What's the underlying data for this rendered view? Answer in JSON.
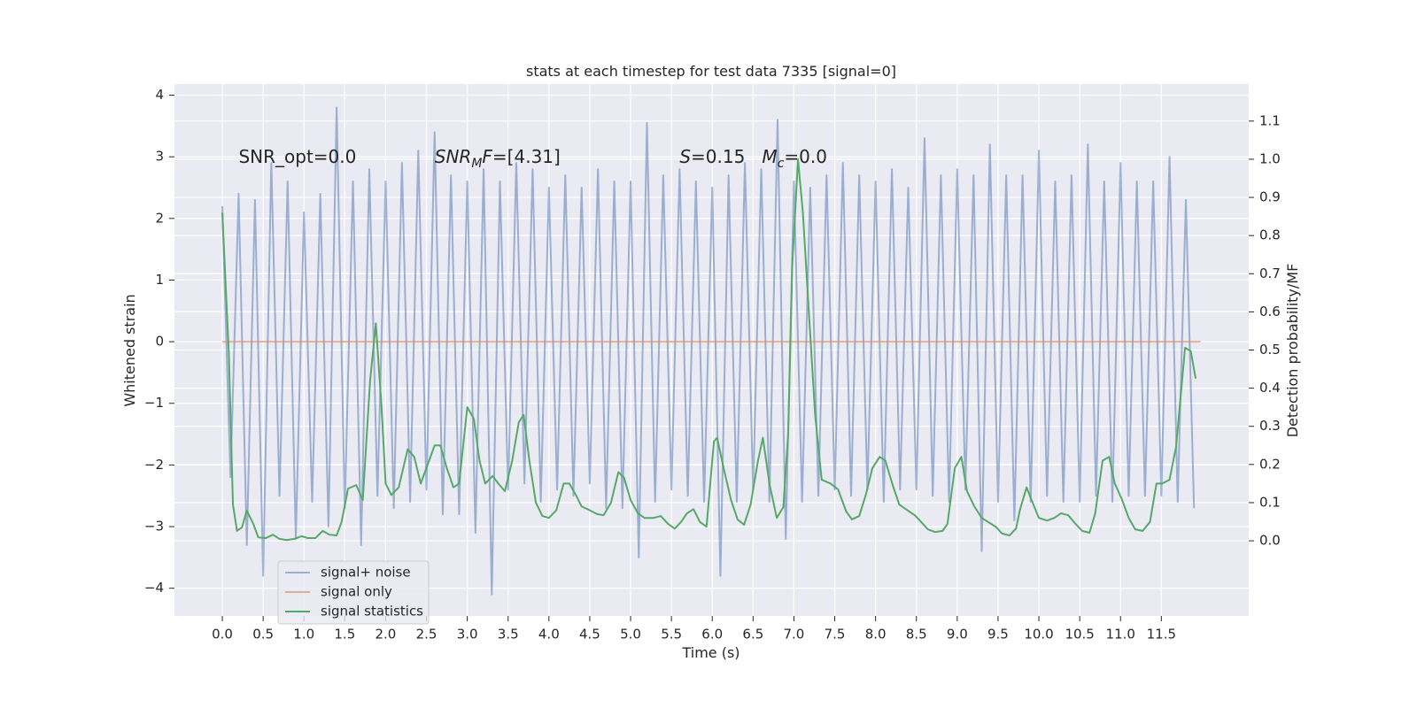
{
  "chart_data": {
    "type": "line",
    "title": "stats at each timestep for test data 7335 [signal=0]",
    "xlabel": "Time (s)",
    "ylabel": "Whitened strain",
    "y2label": "Detection probability/MF",
    "xlim": [
      -0.586,
      12.57
    ],
    "ylim": [
      -4.45,
      4.18
    ],
    "y2lim": [
      -0.197,
      1.197
    ],
    "grid": true,
    "legend": "lower left",
    "xticks": [
      {
        "value": 0,
        "label": "0.0"
      },
      {
        "value": 0.5,
        "label": "0.5"
      },
      {
        "value": 1,
        "label": "1.0"
      },
      {
        "value": 1.5,
        "label": "1.5"
      },
      {
        "value": 2,
        "label": "2.0"
      },
      {
        "value": 2.5,
        "label": "2.5"
      },
      {
        "value": 3,
        "label": "3.0"
      },
      {
        "value": 3.5,
        "label": "3.5"
      },
      {
        "value": 4,
        "label": "4.0"
      },
      {
        "value": 4.5,
        "label": "4.5"
      },
      {
        "value": 5,
        "label": "5.0"
      },
      {
        "value": 5.5,
        "label": "5.5"
      },
      {
        "value": 6,
        "label": "6.0"
      },
      {
        "value": 6.5,
        "label": "6.5"
      },
      {
        "value": 7,
        "label": "7.0"
      },
      {
        "value": 7.5,
        "label": "7.5"
      },
      {
        "value": 8,
        "label": "8.0"
      },
      {
        "value": 8.5,
        "label": "8.5"
      },
      {
        "value": 9,
        "label": "9.0"
      },
      {
        "value": 9.5,
        "label": "9.5"
      },
      {
        "value": 10,
        "label": "10.0"
      },
      {
        "value": 10.5,
        "label": "10.5"
      },
      {
        "value": 11,
        "label": "11.0"
      },
      {
        "value": 11.5,
        "label": "11.5"
      }
    ],
    "yticks": [
      {
        "value": -4,
        "label": "−4"
      },
      {
        "value": -3,
        "label": "−3"
      },
      {
        "value": -2,
        "label": "−2"
      },
      {
        "value": -1,
        "label": "−1"
      },
      0,
      1,
      2,
      3,
      4
    ],
    "y2ticks": [
      {
        "value": 0,
        "label": "0.0"
      },
      {
        "value": 0.1,
        "label": "0.1"
      },
      {
        "value": 0.2,
        "label": "0.2"
      },
      {
        "value": 0.3,
        "label": "0.3"
      },
      {
        "value": 0.4,
        "label": "0.4"
      },
      {
        "value": 0.5,
        "label": "0.5"
      },
      {
        "value": 0.6,
        "label": "0.6"
      },
      {
        "value": 0.7,
        "label": "0.7"
      },
      {
        "value": 0.8,
        "label": "0.8"
      },
      {
        "value": 0.9,
        "label": "0.9"
      },
      {
        "value": 1,
        "label": "1.0"
      },
      {
        "value": 1.1,
        "label": "1.1"
      }
    ],
    "annotations": [
      {
        "parts": [
          {
            "text": "SNR_opt=0.0"
          }
        ]
      },
      {
        "parts": [
          {
            "text": "SNR",
            "style": "italic"
          },
          {
            "text": "M",
            "style": "italic-sub"
          },
          {
            "text": "F",
            "style": "italic"
          },
          {
            "text": "=[4.31]"
          }
        ]
      },
      {
        "parts": [
          {
            "text": "S",
            "style": "italic"
          },
          {
            "text": "=0.15   "
          },
          {
            "text": "M",
            "style": "italic"
          },
          {
            "text": "c",
            "style": "italic-sub"
          },
          {
            "text": "=0.0"
          }
        ]
      }
    ],
    "series": [
      {
        "name": "signal+ noise",
        "color": "#4c72b0",
        "opacity": 0.5,
        "x": [
          0,
          0.1,
          0.2,
          0.3,
          0.4,
          0.5,
          0.6,
          0.7,
          0.8,
          0.9,
          1,
          1.1,
          1.2,
          1.3,
          1.4,
          1.5,
          1.6,
          1.7,
          1.8,
          1.9,
          2,
          2.1,
          2.2,
          2.3,
          2.4,
          2.5,
          2.6,
          2.7,
          2.8,
          2.9,
          3,
          3.1,
          3.2,
          3.3,
          3.4,
          3.5,
          3.6,
          3.7,
          3.8,
          3.9,
          4,
          4.1,
          4.2,
          4.3,
          4.4,
          4.5,
          4.6,
          4.7,
          4.8,
          4.9,
          5,
          5.1,
          5.2,
          5.3,
          5.4,
          5.5,
          5.6,
          5.7,
          5.8,
          5.9,
          6,
          6.1,
          6.2,
          6.3,
          6.4,
          6.5,
          6.6,
          6.7,
          6.8,
          6.9,
          7,
          7.1,
          7.2,
          7.3,
          7.4,
          7.5,
          7.6,
          7.7,
          7.8,
          7.9,
          8,
          8.1,
          8.2,
          8.3,
          8.4,
          8.5,
          8.6,
          8.7,
          8.8,
          8.9,
          9,
          9.1,
          9.2,
          9.3,
          9.4,
          9.5,
          9.6,
          9.7,
          9.8,
          9.9,
          10,
          10.1,
          10.2,
          10.3,
          10.4,
          10.5,
          10.6,
          10.7,
          10.8,
          10.9,
          11,
          11.1,
          11.2,
          11.3,
          11.4,
          11.5,
          11.6,
          11.7,
          11.8,
          11.9
        ],
        "values": [
          2.2,
          -2.2,
          2.4,
          -3.3,
          2.3,
          -3.8,
          2.9,
          -2.5,
          2.6,
          -3.2,
          2.1,
          -2.6,
          2.4,
          -3.0,
          3.8,
          -2.7,
          2.6,
          -3.3,
          2.8,
          -2.5,
          2.6,
          -2.7,
          2.9,
          -2.6,
          3.1,
          -2.4,
          3.4,
          -2.8,
          2.7,
          -2.8,
          2.6,
          -3.1,
          2.8,
          -4.1,
          2.6,
          -2.4,
          2.9,
          -2.3,
          2.8,
          -2.6,
          2.5,
          -2.4,
          2.7,
          -2.5,
          2.5,
          -2.3,
          2.8,
          -2.7,
          2.6,
          -2.7,
          2.6,
          -3.5,
          3.55,
          -2.6,
          2.7,
          -2.4,
          2.8,
          -2.5,
          2.6,
          -2.6,
          2.5,
          -3.8,
          2.7,
          -2.6,
          2.9,
          -2.4,
          2.8,
          -2.6,
          3.6,
          -3.2,
          2.6,
          -2.6,
          2.5,
          -2.5,
          2.7,
          -2.4,
          2.9,
          -2.5,
          2.7,
          -2.4,
          2.6,
          -2.6,
          2.8,
          -2.4,
          2.5,
          -2.4,
          3.3,
          -2.5,
          2.7,
          -2.6,
          2.8,
          -2.4,
          2.7,
          -3.4,
          3.2,
          -2.6,
          2.7,
          -2.9,
          2.7,
          -2.6,
          3.1,
          -2.5,
          2.6,
          -2.6,
          2.7,
          -2.6,
          3.2,
          -2.5,
          2.6,
          -2.6,
          2.9,
          -2.5,
          2.6,
          -2.5,
          2.6,
          -2.5,
          3.0,
          -2.6,
          2.3,
          -2.7
        ]
      },
      {
        "name": "signal only",
        "color": "#dd8452",
        "opacity": 0.6,
        "x": [
          0,
          11.98
        ],
        "values": [
          0,
          0
        ]
      },
      {
        "name": "signal statistics",
        "color": "#55a868",
        "opacity": 1,
        "axis": "y2",
        "x": [
          0.0,
          0.08,
          0.13,
          0.18,
          0.24,
          0.3,
          0.38,
          0.44,
          0.53,
          0.62,
          0.7,
          0.79,
          0.88,
          0.97,
          1.05,
          1.14,
          1.23,
          1.31,
          1.4,
          1.46,
          1.54,
          1.64,
          1.72,
          1.81,
          1.88,
          1.95,
          2.0,
          2.07,
          2.16,
          2.27,
          2.35,
          2.43,
          2.6,
          2.67,
          2.75,
          2.83,
          2.9,
          3.0,
          3.08,
          3.15,
          3.22,
          3.31,
          3.38,
          3.46,
          3.55,
          3.63,
          3.69,
          3.76,
          3.84,
          3.92,
          4.0,
          4.09,
          4.18,
          4.25,
          4.33,
          4.4,
          4.5,
          4.59,
          4.67,
          4.76,
          4.85,
          4.92,
          5.0,
          5.09,
          5.17,
          5.28,
          5.37,
          5.46,
          5.54,
          5.62,
          5.69,
          5.77,
          5.85,
          5.93,
          6.02,
          6.06,
          6.14,
          6.23,
          6.31,
          6.39,
          6.47,
          6.56,
          6.62,
          6.7,
          6.79,
          6.87,
          6.93,
          6.98,
          7.05,
          7.11,
          7.18,
          7.26,
          7.34,
          7.45,
          7.54,
          7.64,
          7.71,
          7.8,
          7.88,
          7.96,
          8.05,
          8.12,
          8.21,
          8.29,
          8.39,
          8.48,
          8.56,
          8.64,
          8.73,
          8.82,
          8.88,
          8.97,
          9.05,
          9.12,
          9.21,
          9.3,
          9.38,
          9.47,
          9.55,
          9.64,
          9.72,
          9.77,
          9.85,
          9.91,
          10.0,
          10.1,
          10.19,
          10.27,
          10.36,
          10.45,
          10.53,
          10.62,
          10.69,
          10.78,
          10.86,
          10.93,
          11.02,
          11.1,
          11.18,
          11.27,
          11.36,
          11.44,
          11.51,
          11.6,
          11.68,
          11.79,
          11.86,
          11.92
        ],
        "values": [
          0.86,
          0.49,
          0.095,
          0.026,
          0.035,
          0.079,
          0.044,
          0.009,
          0.007,
          0.016,
          0.005,
          0.002,
          0.005,
          0.012,
          0.007,
          0.007,
          0.026,
          0.016,
          0.014,
          0.049,
          0.137,
          0.146,
          0.107,
          0.42,
          0.57,
          0.35,
          0.15,
          0.12,
          0.14,
          0.24,
          0.22,
          0.15,
          0.25,
          0.25,
          0.19,
          0.14,
          0.15,
          0.35,
          0.32,
          0.21,
          0.15,
          0.17,
          0.15,
          0.13,
          0.21,
          0.31,
          0.33,
          0.21,
          0.1,
          0.065,
          0.06,
          0.08,
          0.15,
          0.15,
          0.12,
          0.09,
          0.08,
          0.07,
          0.067,
          0.1,
          0.18,
          0.165,
          0.107,
          0.072,
          0.06,
          0.06,
          0.065,
          0.044,
          0.032,
          0.05,
          0.072,
          0.083,
          0.049,
          0.037,
          0.26,
          0.27,
          0.19,
          0.107,
          0.056,
          0.042,
          0.095,
          0.21,
          0.27,
          0.15,
          0.06,
          0.088,
          0.28,
          0.72,
          1.0,
          0.86,
          0.61,
          0.33,
          0.16,
          0.15,
          0.135,
          0.077,
          0.056,
          0.065,
          0.12,
          0.19,
          0.22,
          0.21,
          0.146,
          0.095,
          0.08,
          0.067,
          0.049,
          0.03,
          0.023,
          0.026,
          0.044,
          0.19,
          0.22,
          0.13,
          0.09,
          0.06,
          0.049,
          0.037,
          0.019,
          0.014,
          0.032,
          0.083,
          0.14,
          0.107,
          0.06,
          0.053,
          0.06,
          0.072,
          0.067,
          0.044,
          0.026,
          0.021,
          0.072,
          0.21,
          0.22,
          0.15,
          0.107,
          0.06,
          0.03,
          0.026,
          0.049,
          0.15,
          0.15,
          0.16,
          0.246,
          0.506,
          0.497,
          0.425
        ]
      }
    ]
  }
}
